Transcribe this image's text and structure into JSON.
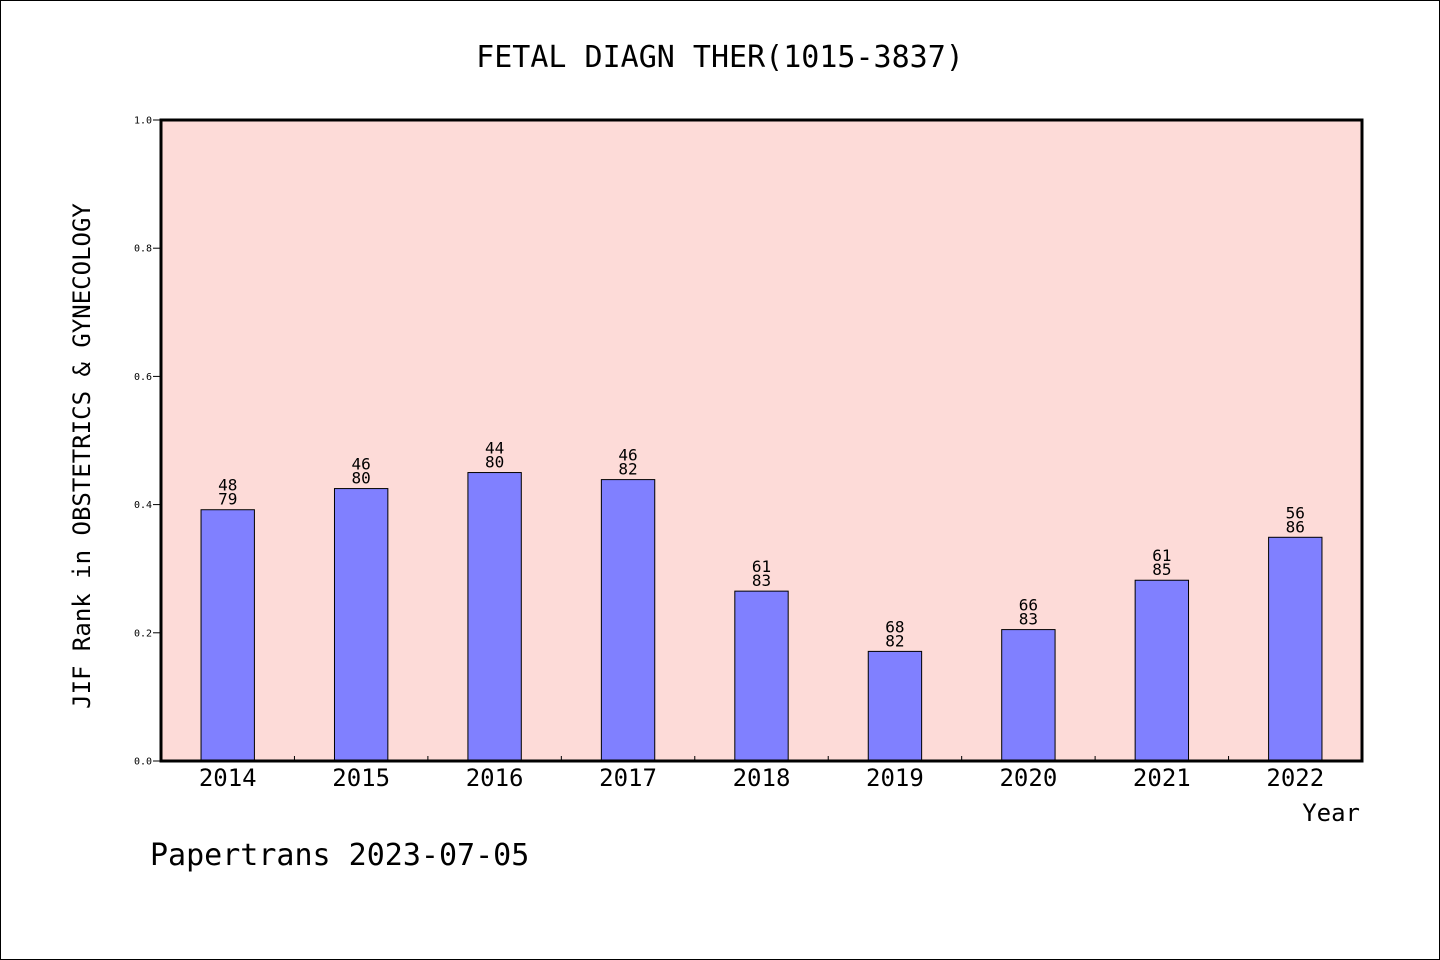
{
  "chart_data": {
    "type": "bar",
    "title": "FETAL DIAGN THER(1015-3837)",
    "xlabel": "Year",
    "ylabel": "JIF Rank in OBSTETRICS & GYNECOLOGY",
    "categories": [
      "2014",
      "2015",
      "2016",
      "2017",
      "2018",
      "2019",
      "2020",
      "2021",
      "2022"
    ],
    "values": [
      0.392,
      0.425,
      0.45,
      0.439,
      0.265,
      0.171,
      0.205,
      0.282,
      0.349
    ],
    "rank_labels": [
      {
        "rank": "48",
        "total": "79"
      },
      {
        "rank": "46",
        "total": "80"
      },
      {
        "rank": "44",
        "total": "80"
      },
      {
        "rank": "46",
        "total": "82"
      },
      {
        "rank": "61",
        "total": "83"
      },
      {
        "rank": "68",
        "total": "82"
      },
      {
        "rank": "66",
        "total": "83"
      },
      {
        "rank": "61",
        "total": "85"
      },
      {
        "rank": "56",
        "total": "86"
      }
    ],
    "ylim": [
      0.0,
      1.0
    ],
    "yticks": [
      "0.0",
      "0.2",
      "0.4",
      "0.6",
      "0.8",
      "1.0"
    ],
    "grid": false,
    "colors": {
      "plot_background": "#FDDBD8",
      "bar_fill": "#8080FF",
      "bar_stroke": "#000000"
    }
  },
  "footer": {
    "text": "Papertrans 2023-07-05"
  }
}
